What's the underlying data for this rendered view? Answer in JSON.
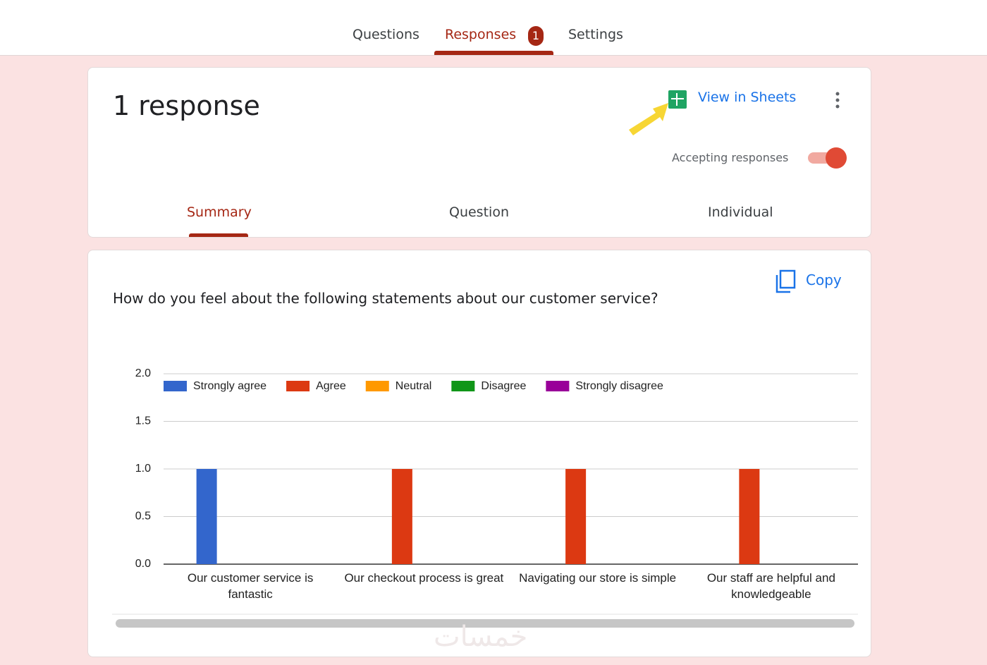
{
  "tabs": {
    "questions": "Questions",
    "responses": "Responses",
    "badge": "1",
    "settings": "Settings"
  },
  "summary_card": {
    "count": "1 response",
    "view_in_sheets": "View in Sheets",
    "accepting": "Accepting responses",
    "subtabs": [
      "Summary",
      "Question",
      "Individual"
    ]
  },
  "question_card": {
    "copy": "Copy",
    "question": "How do you feel about the following statements about our customer service?",
    "watermark": "خمسات"
  },
  "chart_data": {
    "type": "bar",
    "categories": [
      "Our customer service is fantastic",
      "Our checkout process is great",
      "Navigating our store is simple",
      "Our staff are helpful and knowledgeable"
    ],
    "series": [
      {
        "name": "Strongly agree",
        "color": "#3366cc",
        "values": [
          1,
          0,
          0,
          0
        ]
      },
      {
        "name": "Agree",
        "color": "#dc3912",
        "values": [
          0,
          1,
          1,
          1
        ]
      },
      {
        "name": "Neutral",
        "color": "#ff9900",
        "values": [
          0,
          0,
          0,
          0
        ]
      },
      {
        "name": "Disagree",
        "color": "#109618",
        "values": [
          0,
          0,
          0,
          0
        ]
      },
      {
        "name": "Strongly disagree",
        "color": "#990099",
        "values": [
          0,
          0,
          0,
          0
        ]
      }
    ],
    "ylim": [
      0,
      2
    ],
    "yticks": [
      {
        "value": 0,
        "label": "0.0"
      },
      {
        "value": 0.5,
        "label": "0.5"
      },
      {
        "value": 1,
        "label": "1.0"
      },
      {
        "value": 1.5,
        "label": "1.5"
      },
      {
        "value": 2,
        "label": "2.0"
      }
    ],
    "grid": true,
    "legend": "top"
  }
}
